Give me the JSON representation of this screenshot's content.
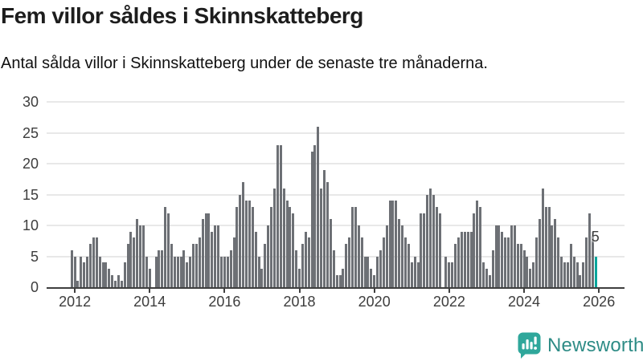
{
  "title": "Fem villor såldes i Skinnskatteberg",
  "subtitle": "Antal sålda villor i Skinnskatteberg under de senaste tre månaderna.",
  "footer": {
    "logo_text": "Newsworthy"
  },
  "colors": {
    "bar": "#6d7075",
    "highlight": "#00a69c",
    "grid": "#e8e8e8",
    "axis": "#3f3f3f",
    "title_text": "#1d1d1d",
    "tick_text": "#3d3d3d",
    "logo_text": "#2e8c86",
    "logo_icon": "#2fa79b"
  },
  "chart_data": {
    "type": "bar",
    "title": "Fem villor såldes i Skinnskatteberg",
    "subtitle": "Antal sålda villor i Skinnskatteberg under de senaste tre månaderna.",
    "start_month": "2011-12",
    "x_tick_labels": [
      "2012",
      "2014",
      "2016",
      "2018",
      "2020",
      "2022",
      "2024",
      "2026"
    ],
    "y_ticks": [
      0,
      5,
      10,
      15,
      20,
      25,
      30
    ],
    "ylim": [
      0,
      30
    ],
    "grid": "horizontal",
    "highlight_last": true,
    "highlight_label": "5",
    "values": [
      6,
      5,
      1,
      5,
      4,
      5,
      7,
      8,
      8,
      5,
      4,
      4,
      3,
      2,
      1,
      2,
      1,
      4,
      7,
      9,
      8,
      11,
      10,
      10,
      5,
      3,
      0,
      5,
      6,
      6,
      13,
      12,
      7,
      5,
      5,
      5,
      6,
      4,
      5,
      7,
      7,
      8,
      11,
      12,
      12,
      9,
      10,
      10,
      5,
      5,
      5,
      6,
      8,
      13,
      15,
      17,
      14,
      14,
      13,
      9,
      5,
      3,
      7,
      10,
      13,
      16,
      23,
      23,
      16,
      14,
      13,
      12,
      6,
      3,
      7,
      9,
      8,
      22,
      23,
      26,
      16,
      19,
      17,
      11,
      6,
      2,
      2,
      3,
      7,
      8,
      13,
      13,
      10,
      8,
      5,
      5,
      3,
      2,
      5,
      6,
      8,
      10,
      14,
      14,
      14,
      11,
      10,
      8,
      7,
      4,
      5,
      4,
      12,
      12,
      15,
      16,
      15,
      13,
      12,
      0,
      5,
      4,
      4,
      7,
      8,
      9,
      9,
      9,
      9,
      12,
      14,
      13,
      4,
      3,
      2,
      6,
      10,
      10,
      9,
      8,
      8,
      10,
      10,
      7,
      7,
      6,
      5,
      3,
      4,
      8,
      11,
      16,
      13,
      13,
      10,
      11,
      8,
      5,
      4,
      4,
      7,
      5,
      4,
      2,
      4,
      8,
      12,
      9,
      5
    ]
  }
}
